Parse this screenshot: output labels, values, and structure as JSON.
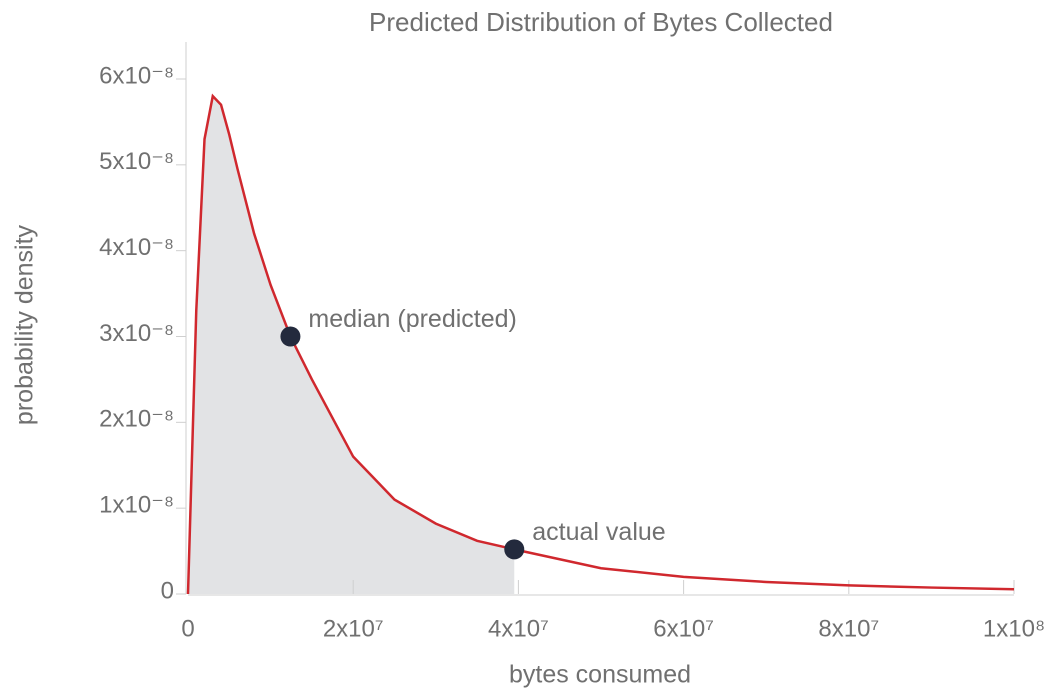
{
  "chart_data": {
    "type": "line",
    "title": "Predicted Distribution of Bytes Collected",
    "x_label": "bytes consumed",
    "y_label": "probability density",
    "xlim": [
      0,
      100000000
    ],
    "ylim": [
      0,
      6e-08
    ],
    "xticks": [
      0,
      {
        "value": 20000000,
        "label": "2x10⁷"
      },
      {
        "value": 40000000,
        "label": "4x10⁷"
      },
      {
        "value": 60000000,
        "label": "6x10⁷"
      },
      {
        "value": 80000000,
        "label": "8x10⁷"
      },
      {
        "value": 100000000,
        "label": "1x10⁸"
      }
    ],
    "yticks": [
      0,
      {
        "value": 1e-08,
        "label": "1x10⁻⁸"
      },
      {
        "value": 2e-08,
        "label": "2x10⁻⁸"
      },
      {
        "value": 3e-08,
        "label": "3x10⁻⁸"
      },
      {
        "value": 4e-08,
        "label": "4x10⁻⁸"
      },
      {
        "value": 5e-08,
        "label": "5x10⁻⁸"
      },
      {
        "value": 6e-08,
        "label": "6x10⁻⁸"
      }
    ],
    "series": [
      {
        "color": "#d0282e",
        "fill_color": "#e2e3e5",
        "x": [
          0,
          1000000,
          2000000,
          3000000,
          4000000,
          5000000,
          6000000,
          8000000,
          10000000,
          12400000,
          15000000,
          20000000,
          25000000,
          30000000,
          35000000,
          39500000,
          50000000,
          60000000,
          70000000,
          80000000,
          90000000,
          100000000
        ],
        "values": [
          0,
          3.3e-08,
          5.3e-08,
          5.8e-08,
          5.7e-08,
          5.35e-08,
          4.95e-08,
          4.2e-08,
          3.6e-08,
          3e-08,
          2.5e-08,
          1.6e-08,
          1.1e-08,
          8.2e-09,
          6.2e-09,
          5.2e-09,
          3e-09,
          2e-09,
          1.4e-09,
          1e-09,
          7.5e-10,
          5.5e-10
        ]
      }
    ],
    "annotations": [
      {
        "text": "median (predicted)",
        "x": 12400000,
        "y": 3e-08,
        "color": "#232a3d"
      },
      {
        "text": "actual value",
        "x": 39500000,
        "y": 5.2e-09,
        "color": "#232a3d"
      }
    ]
  }
}
